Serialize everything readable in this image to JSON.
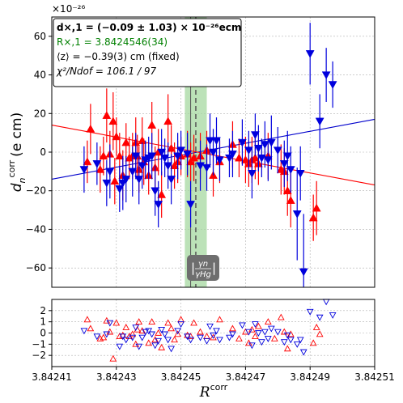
{
  "chart_data": [
    {
      "type": "scatter",
      "title": "",
      "ylabel": "d_n^corr (e cm)",
      "ylabel_main": "d",
      "ylabel_sub": "n",
      "ylabel_sup": "corr",
      "ylabel_unit": "(e cm)",
      "scale_label": "×10⁻²⁶",
      "xlim": [
        3.84241,
        3.84251
      ],
      "ylim": [
        -70,
        70
      ],
      "yticks": [
        -60,
        -40,
        -20,
        0,
        20,
        40,
        60
      ],
      "grid": true,
      "legend": {
        "placement": "top-left",
        "lines": [
          {
            "text": "d×,1 = (−0.09 ± 1.03) × 10⁻²⁶ecm",
            "color": "#000000",
            "bold": true
          },
          {
            "text": "R×,1 = 3.8424546(34)",
            "color": "#008000",
            "bold": false
          },
          {
            "text": "⟨z⟩ = −0.39(3) cm (fixed)",
            "color": "#000000",
            "bold": false
          },
          {
            "text": "χ²/Ndof = 106.1 / 97",
            "color": "#000000",
            "bold": false
          }
        ]
      },
      "crossing": {
        "x": 3.8424546,
        "band": [
          3.8424512,
          3.842458
        ],
        "band_color": "#a6d8a0",
        "marker_x": 3.842453
      },
      "annotation": {
        "text_top": "γn",
        "text_bottom": "γHg",
        "x": 3.8424546,
        "y": -66
      },
      "fit_lines": [
        {
          "name": "",
          "color": "#0000cc",
          "x": [
            3.84241,
            3.84251
          ],
          "y": [
            -14,
            17
          ]
        },
        {
          "name": "",
          "color": "#ff0000",
          "x": [
            3.84241,
            3.84251
          ],
          "y": [
            14,
            -17
          ]
        }
      ],
      "series": [
        {
          "name": "",
          "marker": "triangle-up",
          "color": "#ff0000",
          "points": [
            [
              3.842421,
              -5,
              11
            ],
            [
              3.842422,
              12,
              13
            ],
            [
              3.842425,
              -9,
              12
            ],
            [
              3.842426,
              -2,
              10
            ],
            [
              3.842427,
              19,
              14
            ],
            [
              3.842428,
              -1,
              12
            ],
            [
              3.842429,
              16,
              15
            ],
            [
              3.8424295,
              -15,
              12
            ],
            [
              3.84243,
              8,
              10
            ],
            [
              3.842431,
              -2,
              12
            ],
            [
              3.842432,
              -12,
              13
            ],
            [
              3.842433,
              5,
              10
            ],
            [
              3.842434,
              -3,
              11
            ],
            [
              3.842435,
              -2,
              12
            ],
            [
              3.842436,
              5,
              13
            ],
            [
              3.8424365,
              -2,
              11
            ],
            [
              3.842437,
              -9,
              12
            ],
            [
              3.842438,
              6,
              12
            ],
            [
              3.8424385,
              -5,
              12
            ],
            [
              3.84244,
              -12,
              10
            ],
            [
              3.842441,
              14,
              12
            ],
            [
              3.842442,
              -8,
              11
            ],
            [
              3.842443,
              0,
              12
            ],
            [
              3.842444,
              -22,
              12
            ],
            [
              3.842446,
              16,
              14
            ],
            [
              3.842447,
              2,
              12
            ],
            [
              3.842448,
              -7,
              12
            ],
            [
              3.842449,
              -5,
              11
            ],
            [
              3.84245,
              -2,
              10
            ],
            [
              3.842452,
              -1,
              12
            ],
            [
              3.842453,
              -5,
              10
            ],
            [
              3.842454,
              -3,
              12
            ],
            [
              3.842456,
              -2,
              12
            ],
            [
              3.842458,
              1,
              10
            ],
            [
              3.84246,
              -12,
              11
            ],
            [
              3.842462,
              -5,
              11
            ],
            [
              3.842466,
              4,
              12
            ],
            [
              3.842468,
              -3,
              10
            ],
            [
              3.84247,
              -4,
              12
            ],
            [
              3.842471,
              -6,
              12
            ],
            [
              3.842472,
              -4,
              12
            ],
            [
              3.842473,
              -3,
              11
            ],
            [
              3.842474,
              -6,
              11
            ],
            [
              3.842477,
              -2,
              12
            ],
            [
              3.842481,
              -9,
              13
            ],
            [
              3.842482,
              -10,
              12
            ],
            [
              3.842483,
              -20,
              13
            ],
            [
              3.842484,
              -25,
              14
            ],
            [
              3.842491,
              -34,
              12
            ],
            [
              3.842492,
              -29,
              14
            ]
          ]
        },
        {
          "name": "",
          "marker": "triangle-down",
          "color": "#0000dd",
          "points": [
            [
              3.84242,
              -9,
              12
            ],
            [
              3.842424,
              -6,
              11
            ],
            [
              3.842427,
              -16,
              12
            ],
            [
              3.842428,
              -10,
              14
            ],
            [
              3.842431,
              -19,
              12
            ],
            [
              3.842432,
              -16,
              14
            ],
            [
              3.842433,
              -14,
              12
            ],
            [
              3.842435,
              -10,
              13
            ],
            [
              3.842436,
              -2,
              12
            ],
            [
              3.842437,
              -14,
              13
            ],
            [
              3.842438,
              -7,
              12
            ],
            [
              3.842439,
              -4,
              10
            ],
            [
              3.84244,
              -3,
              11
            ],
            [
              3.842441,
              -2,
              12
            ],
            [
              3.842442,
              -20,
              13
            ],
            [
              3.842443,
              -27,
              12
            ],
            [
              3.842444,
              0,
              12
            ],
            [
              3.842445,
              -3,
              10
            ],
            [
              3.842446,
              -7,
              12
            ],
            [
              3.842447,
              -14,
              13
            ],
            [
              3.842449,
              -2,
              12
            ],
            [
              3.84245,
              1,
              10
            ],
            [
              3.842452,
              -1,
              11
            ],
            [
              3.842453,
              -27,
              12
            ],
            [
              3.842456,
              -7,
              13
            ],
            [
              3.842458,
              -8,
              12
            ],
            [
              3.842459,
              6,
              14
            ],
            [
              3.84246,
              0,
              12
            ],
            [
              3.842461,
              6,
              12
            ],
            [
              3.842462,
              -4,
              11
            ],
            [
              3.842465,
              -3,
              10
            ],
            [
              3.842466,
              -1,
              12
            ],
            [
              3.842469,
              5,
              12
            ],
            [
              3.842471,
              1,
              10
            ],
            [
              3.842472,
              -11,
              13
            ],
            [
              3.842473,
              9,
              11
            ],
            [
              3.842474,
              2,
              12
            ],
            [
              3.842475,
              -3,
              10
            ],
            [
              3.842476,
              4,
              12
            ],
            [
              3.842477,
              -4,
              11
            ],
            [
              3.842478,
              5,
              14
            ],
            [
              3.84248,
              1,
              12
            ],
            [
              3.842482,
              -6,
              12
            ],
            [
              3.842483,
              -2,
              13
            ],
            [
              3.842484,
              -9,
              12
            ],
            [
              3.842486,
              -32,
              24
            ],
            [
              3.842487,
              -11,
              14
            ],
            [
              3.842488,
              -62,
              30
            ],
            [
              3.84249,
              51,
              16
            ],
            [
              3.842493,
              16,
              14
            ],
            [
              3.842495,
              40,
              14
            ],
            [
              3.842497,
              35,
              12
            ]
          ]
        }
      ]
    },
    {
      "type": "scatter",
      "title": "",
      "xlabel": "R^corr",
      "xlabel_main": "R",
      "xlabel_sup": "corr",
      "xlim": [
        3.84241,
        3.84251
      ],
      "ylim": [
        -3,
        3
      ],
      "yticks": [
        -2,
        -1,
        0,
        1,
        2
      ],
      "xticks": [
        "3.84241",
        "3.84243",
        "3.84245",
        "3.84247",
        "3.84249",
        "3.84251"
      ],
      "xtick_values": [
        3.84241,
        3.84243,
        3.84245,
        3.84247,
        3.84249,
        3.84251
      ],
      "grid": true,
      "series": [
        {
          "name": "",
          "marker": "triangle-up-open",
          "color": "#ff0000",
          "points": [
            [
              3.842421,
              1.2
            ],
            [
              3.842422,
              0.4
            ],
            [
              3.842425,
              -0.5
            ],
            [
              3.842426,
              -0.4
            ],
            [
              3.842427,
              1.1
            ],
            [
              3.842428,
              0.1
            ],
            [
              3.842429,
              -2.3
            ],
            [
              3.84243,
              0.9
            ],
            [
              3.842431,
              -0.3
            ],
            [
              3.842432,
              -0.2
            ],
            [
              3.842433,
              0.5
            ],
            [
              3.842434,
              -0.3
            ],
            [
              3.842435,
              -0.1
            ],
            [
              3.842436,
              -1.0
            ],
            [
              3.8424365,
              0.3
            ],
            [
              3.842437,
              1.0
            ],
            [
              3.842438,
              0.2
            ],
            [
              3.84244,
              -0.9
            ],
            [
              3.842441,
              1.0
            ],
            [
              3.842442,
              -0.6
            ],
            [
              3.842443,
              0.0
            ],
            [
              3.842444,
              -1.3
            ],
            [
              3.842446,
              0.9
            ],
            [
              3.842447,
              0.4
            ],
            [
              3.842448,
              -0.6
            ],
            [
              3.842449,
              -0.1
            ],
            [
              3.84245,
              1.2
            ],
            [
              3.842452,
              -0.2
            ],
            [
              3.842453,
              -0.3
            ],
            [
              3.842454,
              0.9
            ],
            [
              3.842456,
              0.1
            ],
            [
              3.842458,
              -0.3
            ],
            [
              3.84246,
              -0.4
            ],
            [
              3.842462,
              1.2
            ],
            [
              3.842466,
              0.4
            ],
            [
              3.842468,
              -0.5
            ],
            [
              3.84247,
              0.1
            ],
            [
              3.842471,
              -0.9
            ],
            [
              3.842472,
              0.3
            ],
            [
              3.842473,
              -0.3
            ],
            [
              3.842474,
              0.6
            ],
            [
              3.842477,
              1.0
            ],
            [
              3.842479,
              -0.5
            ],
            [
              3.842481,
              1.4
            ],
            [
              3.842482,
              0.1
            ],
            [
              3.842483,
              -1.4
            ],
            [
              3.842484,
              -0.1
            ],
            [
              3.842491,
              -0.9
            ],
            [
              3.842492,
              0.5
            ],
            [
              3.842493,
              -0.1
            ]
          ]
        },
        {
          "name": "",
          "marker": "triangle-down-open",
          "color": "#0000dd",
          "points": [
            [
              3.84242,
              0.2
            ],
            [
              3.842424,
              -0.3
            ],
            [
              3.842427,
              -0.1
            ],
            [
              3.842428,
              0.9
            ],
            [
              3.842431,
              -1.2
            ],
            [
              3.842432,
              -0.3
            ],
            [
              3.842433,
              -0.6
            ],
            [
              3.842435,
              -0.4
            ],
            [
              3.842436,
              0.5
            ],
            [
              3.842437,
              -1.2
            ],
            [
              3.842438,
              -0.4
            ],
            [
              3.842439,
              0.1
            ],
            [
              3.84244,
              0.2
            ],
            [
              3.842441,
              -0.1
            ],
            [
              3.842442,
              -1.1
            ],
            [
              3.842443,
              -0.7
            ],
            [
              3.842444,
              0.3
            ],
            [
              3.842445,
              -0.1
            ],
            [
              3.842446,
              -0.6
            ],
            [
              3.842447,
              -1.4
            ],
            [
              3.842449,
              0.2
            ],
            [
              3.84245,
              0.8
            ],
            [
              3.842452,
              -0.3
            ],
            [
              3.842453,
              -0.6
            ],
            [
              3.842456,
              -0.4
            ],
            [
              3.842458,
              -0.7
            ],
            [
              3.842459,
              0.6
            ],
            [
              3.84246,
              -0.2
            ],
            [
              3.842461,
              0.2
            ],
            [
              3.842462,
              -0.6
            ],
            [
              3.842465,
              -0.4
            ],
            [
              3.842466,
              -0.1
            ],
            [
              3.842469,
              0.7
            ],
            [
              3.842471,
              0.1
            ],
            [
              3.842472,
              -1.1
            ],
            [
              3.842473,
              0.8
            ],
            [
              3.842474,
              0.0
            ],
            [
              3.842475,
              -0.8
            ],
            [
              3.842476,
              0.1
            ],
            [
              3.842477,
              -0.5
            ],
            [
              3.842478,
              0.4
            ],
            [
              3.84248,
              0.1
            ],
            [
              3.842482,
              -0.8
            ],
            [
              3.842483,
              -0.2
            ],
            [
              3.842484,
              -0.6
            ],
            [
              3.842486,
              -1.0
            ],
            [
              3.842487,
              -0.6
            ],
            [
              3.842488,
              -1.7
            ],
            [
              3.84249,
              1.9
            ],
            [
              3.842493,
              1.4
            ],
            [
              3.842495,
              2.8
            ],
            [
              3.842497,
              1.6
            ]
          ]
        }
      ]
    }
  ]
}
